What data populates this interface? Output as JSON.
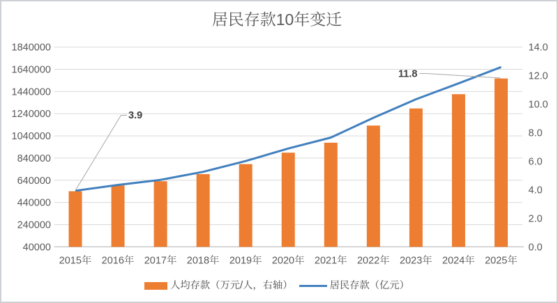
{
  "chart_data": {
    "type": "combo",
    "title": "居民存款10年变迁",
    "categories": [
      "2015年",
      "2016年",
      "2017年",
      "2018年",
      "2019年",
      "2020年",
      "2021年",
      "2022年",
      "2023年",
      "2024年",
      "2025年"
    ],
    "series": [
      {
        "name": "人均存款（万元/人，右轴）",
        "type": "bar",
        "axis": "right",
        "color": "#ED7D31",
        "values": [
          3.9,
          4.3,
          4.6,
          5.1,
          5.8,
          6.6,
          7.3,
          8.5,
          9.7,
          10.7,
          11.8
        ]
      },
      {
        "name": "居民存款（亿元）",
        "type": "line",
        "axis": "left",
        "color": "#4180BE",
        "values": [
          546000,
          598000,
          644000,
          716000,
          813000,
          926000,
          1025000,
          1203000,
          1370000,
          1513000,
          1660000
        ]
      }
    ],
    "axes": {
      "left": {
        "min": 40000,
        "max": 1840000,
        "step": 200000,
        "tick_labels": [
          "40000",
          "240000",
          "440000",
          "640000",
          "840000",
          "1040000",
          "1240000",
          "1440000",
          "1640000",
          "1840000"
        ]
      },
      "right": {
        "min": 0,
        "max": 14,
        "step": 2,
        "tick_labels": [
          "0.0",
          "2.0",
          "4.0",
          "6.0",
          "8.0",
          "10.0",
          "12.0",
          "14.0"
        ]
      }
    },
    "annotations": [
      {
        "text": "3.9",
        "series": 0,
        "index": 0
      },
      {
        "text": "11.8",
        "series": 0,
        "index": 10
      }
    ],
    "grid": true,
    "legend_position": "bottom"
  },
  "styles": {
    "background": "#FFFFFF",
    "frame_border": "#CDD0D4",
    "gridline": "#D9D9D9",
    "axis_line": "#BFBFBF",
    "tick_text": "#595959",
    "title_text": "#595959",
    "data_label_text": "#404040",
    "leader_line": "#A6A6A6",
    "bar_fill": "#ED7D31",
    "line_stroke": "#4180BE"
  }
}
